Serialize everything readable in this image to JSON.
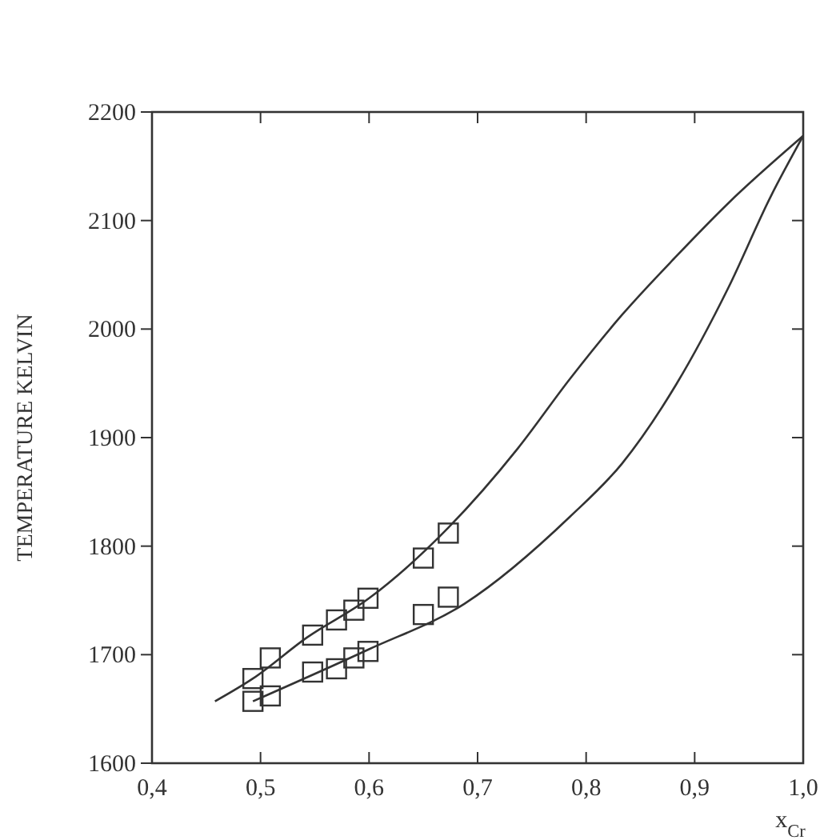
{
  "chart_data": {
    "type": "line",
    "xlabel": "x$_{Cr}$",
    "ylabel": "TEMPERATURE KELVIN",
    "xlim": [
      0.4,
      1.0
    ],
    "ylim": [
      1600,
      2200
    ],
    "xticks": [
      {
        "value": 0.4,
        "label": "0,4"
      },
      {
        "value": 0.5,
        "label": "0,5"
      },
      {
        "value": 0.6,
        "label": "0,6"
      },
      {
        "value": 0.7,
        "label": "0,7"
      },
      {
        "value": 0.8,
        "label": "0,8"
      },
      {
        "value": 0.9,
        "label": "0,9"
      },
      {
        "value": 1.0,
        "label": "1,0"
      }
    ],
    "yticks": [
      1600,
      1700,
      1800,
      1900,
      2000,
      2100,
      2200
    ],
    "grid": false,
    "series": [
      {
        "color": "#333333",
        "marker": "none",
        "line_style": "solid",
        "x": [
          0.458,
          0.493,
          0.543,
          0.6,
          0.673,
          0.737,
          0.785,
          0.833,
          0.883,
          0.931,
          1.0
        ],
        "values": [
          1657,
          1678,
          1716,
          1752,
          1817,
          1890,
          1954,
          2013,
          2067,
          2116,
          2178
        ]
      },
      {
        "color": "#333333",
        "marker": "none",
        "line_style": "solid",
        "x": [
          0.493,
          0.6,
          0.688,
          0.785,
          0.833,
          0.883,
          0.931,
          0.97,
          1.0
        ],
        "values": [
          1657,
          1705,
          1747,
          1827,
          1876,
          1949,
          2038,
          2122,
          2178
        ]
      },
      {
        "type": "scatter",
        "color": "#333333",
        "marker": "square",
        "x": [
          0.493,
          0.493,
          0.509,
          0.509,
          0.548,
          0.548,
          0.57,
          0.57,
          0.586,
          0.586,
          0.599,
          0.599,
          0.65,
          0.65,
          0.673,
          0.673
        ],
        "values": [
          1678,
          1657,
          1697,
          1662,
          1718,
          1684,
          1732,
          1687,
          1741,
          1697,
          1752,
          1703,
          1789,
          1737,
          1812,
          1753
        ]
      }
    ]
  }
}
